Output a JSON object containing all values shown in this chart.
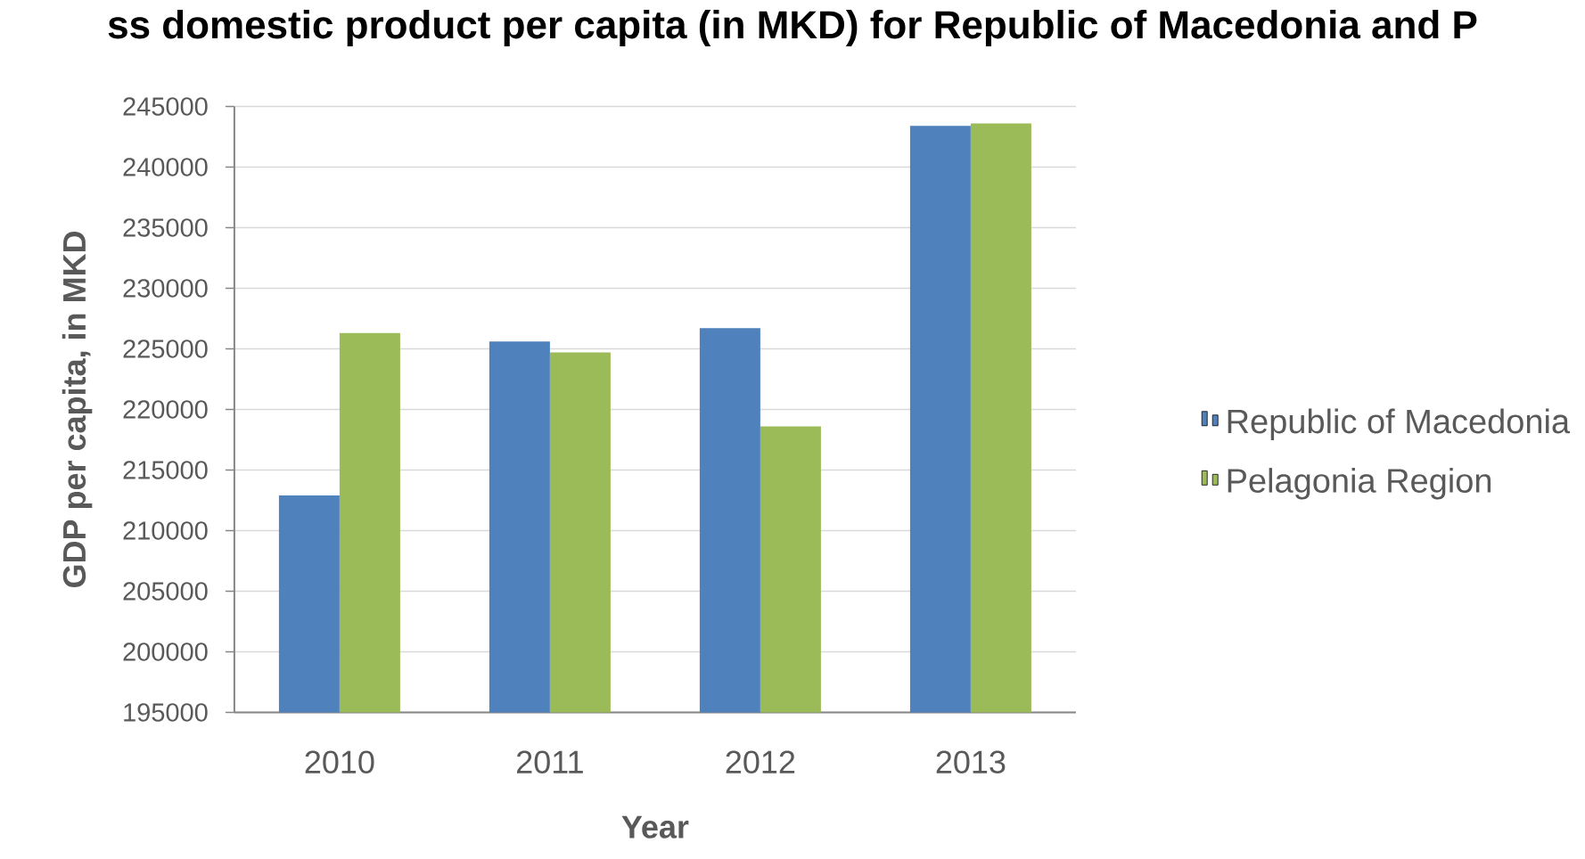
{
  "chart_data": {
    "type": "bar",
    "title": "ss domestic product per capita (in MKD) for Republic of Macedonia and P",
    "xlabel": "Year",
    "ylabel": "GDP per capita, in MKD",
    "categories": [
      "2010",
      "2011",
      "2012",
      "2013"
    ],
    "series": [
      {
        "name": "Republic of Macedonia",
        "color": "#4f81bd",
        "values": [
          212900,
          225600,
          226700,
          243400
        ]
      },
      {
        "name": "Pelagonia Region",
        "color": "#9bbb59",
        "values": [
          226300,
          224700,
          218600,
          243600
        ]
      }
    ],
    "ylim": [
      195000,
      245000
    ],
    "yticks": [
      195000,
      200000,
      205000,
      210000,
      215000,
      220000,
      225000,
      230000,
      235000,
      240000,
      245000
    ],
    "grid": "y",
    "legend": "right"
  }
}
